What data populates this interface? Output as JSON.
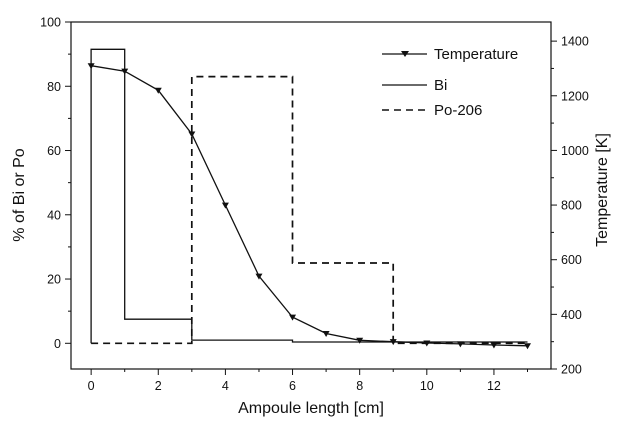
{
  "chart_data": {
    "type": "line",
    "title": "",
    "xlabel": "Ampoule length [cm]",
    "ylabel_left": "% of Bi or Po",
    "ylabel_right": "Temperature [K]",
    "xlim": [
      -0.6,
      13.7
    ],
    "ylim_left": [
      -8,
      100
    ],
    "ylim_right": [
      200,
      1470
    ],
    "x_ticks": [
      0,
      2,
      4,
      6,
      8,
      10,
      12
    ],
    "y_left_ticks": [
      0,
      20,
      40,
      60,
      80,
      100
    ],
    "y_right_ticks": [
      200,
      400,
      600,
      800,
      1000,
      1200,
      1400
    ],
    "grid": false,
    "legend_position": "top-right",
    "series": [
      {
        "name": "Temperature",
        "axis": "right",
        "style": "line-with-triangle-markers",
        "color": "#111111",
        "points": [
          [
            0,
            1310
          ],
          [
            1,
            1290
          ],
          [
            2,
            1220
          ],
          [
            3,
            1060
          ],
          [
            4,
            800
          ],
          [
            5,
            540
          ],
          [
            6,
            390
          ],
          [
            7,
            330
          ],
          [
            8,
            305
          ],
          [
            9,
            300
          ],
          [
            10,
            295
          ],
          [
            11,
            292
          ],
          [
            12,
            288
          ],
          [
            13,
            285
          ]
        ]
      },
      {
        "name": "Bi",
        "axis": "left",
        "style": "solid",
        "color": "#111111",
        "points": [
          [
            0,
            0
          ],
          [
            0,
            91.5
          ],
          [
            1,
            91.5
          ],
          [
            1,
            7.5
          ],
          [
            3,
            7.5
          ],
          [
            3,
            1
          ],
          [
            6,
            1
          ],
          [
            6,
            0.4
          ],
          [
            13,
            0.4
          ]
        ]
      },
      {
        "name": "Po-206",
        "axis": "left",
        "style": "dashed",
        "color": "#111111",
        "points": [
          [
            0,
            0
          ],
          [
            3,
            0
          ],
          [
            3,
            83
          ],
          [
            6,
            83
          ],
          [
            6,
            25
          ],
          [
            9,
            25
          ],
          [
            9,
            0
          ],
          [
            13,
            0
          ]
        ]
      }
    ]
  }
}
